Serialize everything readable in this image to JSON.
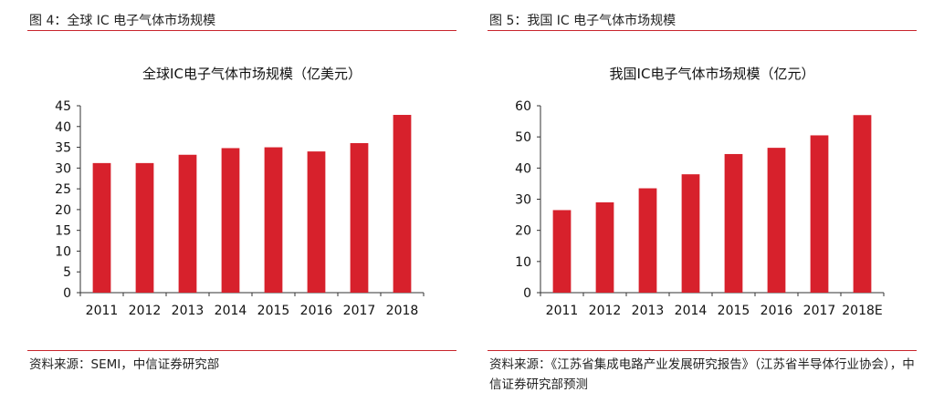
{
  "panels": [
    {
      "figure_title": "图 4：全球 IC 电子气体市场规模",
      "source": "资料来源：SEMI，中信证券研究部",
      "chart_data": {
        "type": "bar",
        "title": "全球IC电子气体市场规模（亿美元）",
        "xlabel": "",
        "ylabel": "",
        "categories": [
          "2011",
          "2012",
          "2013",
          "2014",
          "2015",
          "2016",
          "2017",
          "2018"
        ],
        "values": [
          31.2,
          31.2,
          33.2,
          34.8,
          35.0,
          34.0,
          36.0,
          42.8
        ],
        "ylim": [
          0,
          45
        ],
        "yticks": [
          0,
          5,
          10,
          15,
          20,
          25,
          30,
          35,
          40,
          45
        ],
        "grid": false,
        "legend": "none",
        "bar_color": "#d7212c"
      }
    },
    {
      "figure_title": "图 5：我国 IC 电子气体市场规模",
      "source": "资料来源：《江苏省集成电路产业发展研究报告》（江苏省半导体行业协会），中信证券研究部预测",
      "chart_data": {
        "type": "bar",
        "title": "我国IC电子气体市场规模（亿元）",
        "xlabel": "",
        "ylabel": "",
        "categories": [
          "2011",
          "2012",
          "2013",
          "2014",
          "2015",
          "2016",
          "2017",
          "2018E"
        ],
        "values": [
          26.5,
          29.0,
          33.5,
          38.0,
          44.5,
          46.5,
          50.5,
          57.0
        ],
        "ylim": [
          0,
          60
        ],
        "yticks": [
          0,
          10,
          20,
          30,
          40,
          50,
          60
        ],
        "grid": false,
        "legend": "none",
        "bar_color": "#d7212c"
      }
    }
  ]
}
